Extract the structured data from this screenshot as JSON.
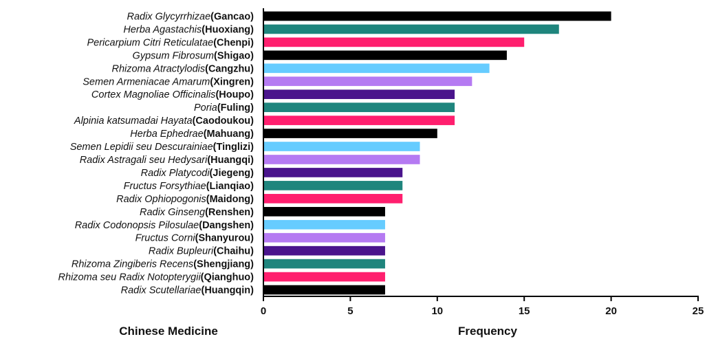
{
  "chart_data": {
    "type": "bar",
    "orientation": "horizontal",
    "xlabel": "Frequency",
    "ylabel": "Chinese Medicine",
    "xlim": [
      0,
      25
    ],
    "xticks": [
      0,
      5,
      10,
      15,
      20,
      25
    ],
    "grid": false,
    "categories": [
      {
        "latin": "Radix Glycyrrhizae",
        "pinyin": "(Gancao)"
      },
      {
        "latin": "Herba Agastachis",
        "pinyin": "(Huoxiang)"
      },
      {
        "latin": "Pericarpium Citri Reticulatae",
        "pinyin": "(Chenpi)"
      },
      {
        "latin": "Gypsum Fibrosum",
        "pinyin": "(Shigao)"
      },
      {
        "latin": "Rhizoma Atractylodis",
        "pinyin": "(Cangzhu)"
      },
      {
        "latin": "Semen Armeniacae Amarum",
        "pinyin": "(Xingren)"
      },
      {
        "latin": "Cortex Magnoliae Officinalis",
        "pinyin": "(Houpo)"
      },
      {
        "latin": "Poria",
        "pinyin": "(Fuling)"
      },
      {
        "latin": "Alpinia katsumadai Hayata",
        "pinyin": "(Caodoukou)"
      },
      {
        "latin": "Herba Ephedrae",
        "pinyin": "(Mahuang)"
      },
      {
        "latin": "Semen Lepidii seu Descurainiae",
        "pinyin": "(Tinglizi)"
      },
      {
        "latin": "Radix Astragali seu Hedysari",
        "pinyin": "(Huangqi)"
      },
      {
        "latin": "Radix Platycodi",
        "pinyin": "(Jiegeng)"
      },
      {
        "latin": "Fructus Forsythiae",
        "pinyin": "(Lianqiao)"
      },
      {
        "latin": "Radix Ophiopogonis",
        "pinyin": "(Maidong)"
      },
      {
        "latin": "Radix Ginseng",
        "pinyin": "(Renshen)"
      },
      {
        "latin": "Radix Codonopsis Pilosulae",
        "pinyin": "(Dangshen)"
      },
      {
        "latin": "Fructus Corni",
        "pinyin": "(Shanyurou)"
      },
      {
        "latin": "Radix Bupleuri",
        "pinyin": "(Chaihu)"
      },
      {
        "latin": "Rhizoma Zingiberis Recens",
        "pinyin": "(Shengjiang)"
      },
      {
        "latin": "Rhizoma seu Radix Notopterygii",
        "pinyin": "(Qianghuo)"
      },
      {
        "latin": "Radix Scutellariae",
        "pinyin": "(Huangqin)"
      }
    ],
    "values": [
      20,
      17,
      15,
      14,
      13,
      12,
      11,
      11,
      11,
      10,
      9,
      9,
      8,
      8,
      8,
      7,
      7,
      7,
      7,
      7,
      7,
      7
    ],
    "bar_colors": [
      "#000000",
      "#1f857d",
      "#ff1f6e",
      "#000000",
      "#66ccff",
      "#b57af2",
      "#4a148c",
      "#1f857d",
      "#ff1f6e",
      "#000000",
      "#66ccff",
      "#b57af2",
      "#4a148c",
      "#1f857d",
      "#ff1f6e",
      "#000000",
      "#66ccff",
      "#b57af2",
      "#4a148c",
      "#1f857d",
      "#ff1f6e",
      "#000000"
    ]
  }
}
